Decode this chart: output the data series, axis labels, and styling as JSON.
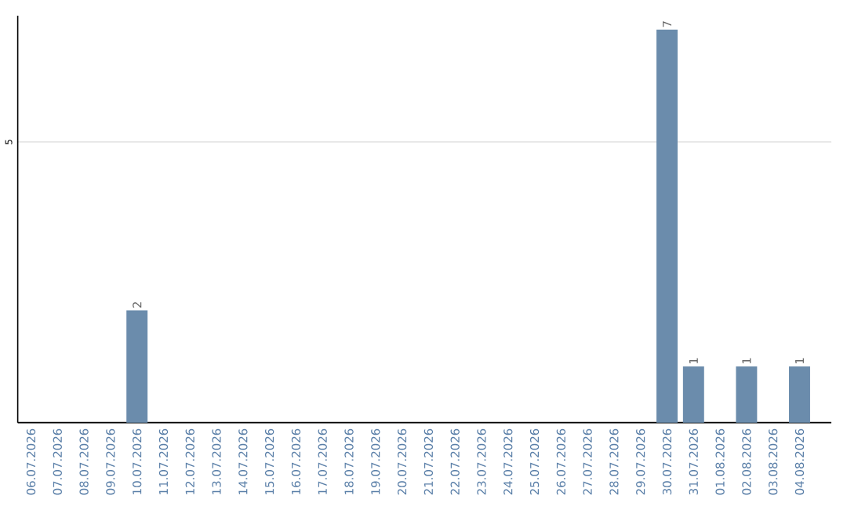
{
  "chart_data": {
    "type": "bar",
    "categories": [
      "06.07.2026",
      "07.07.2026",
      "08.07.2026",
      "09.07.2026",
      "10.07.2026",
      "11.07.2026",
      "12.07.2026",
      "13.07.2026",
      "14.07.2026",
      "15.07.2026",
      "16.07.2026",
      "17.07.2026",
      "18.07.2026",
      "19.07.2026",
      "20.07.2026",
      "21.07.2026",
      "22.07.2026",
      "23.07.2026",
      "24.07.2026",
      "25.07.2026",
      "26.07.2026",
      "27.07.2026",
      "28.07.2026",
      "29.07.2026",
      "30.07.2026",
      "31.07.2026",
      "01.08.2026",
      "02.08.2026",
      "03.08.2026",
      "04.08.2026"
    ],
    "values": [
      0,
      0,
      0,
      0,
      2,
      0,
      0,
      0,
      0,
      0,
      0,
      0,
      0,
      0,
      0,
      0,
      0,
      0,
      0,
      0,
      0,
      0,
      0,
      0,
      7,
      1,
      0,
      1,
      0,
      1
    ],
    "value_labels": [
      null,
      null,
      null,
      null,
      "2",
      null,
      null,
      null,
      null,
      null,
      null,
      null,
      null,
      null,
      null,
      null,
      null,
      null,
      null,
      null,
      null,
      null,
      null,
      null,
      "7",
      "1",
      null,
      "1",
      null,
      "1"
    ],
    "color": "#6b8cac",
    "ylim": [
      0,
      7.25
    ],
    "yticks": [
      5
    ],
    "grid": "y"
  }
}
